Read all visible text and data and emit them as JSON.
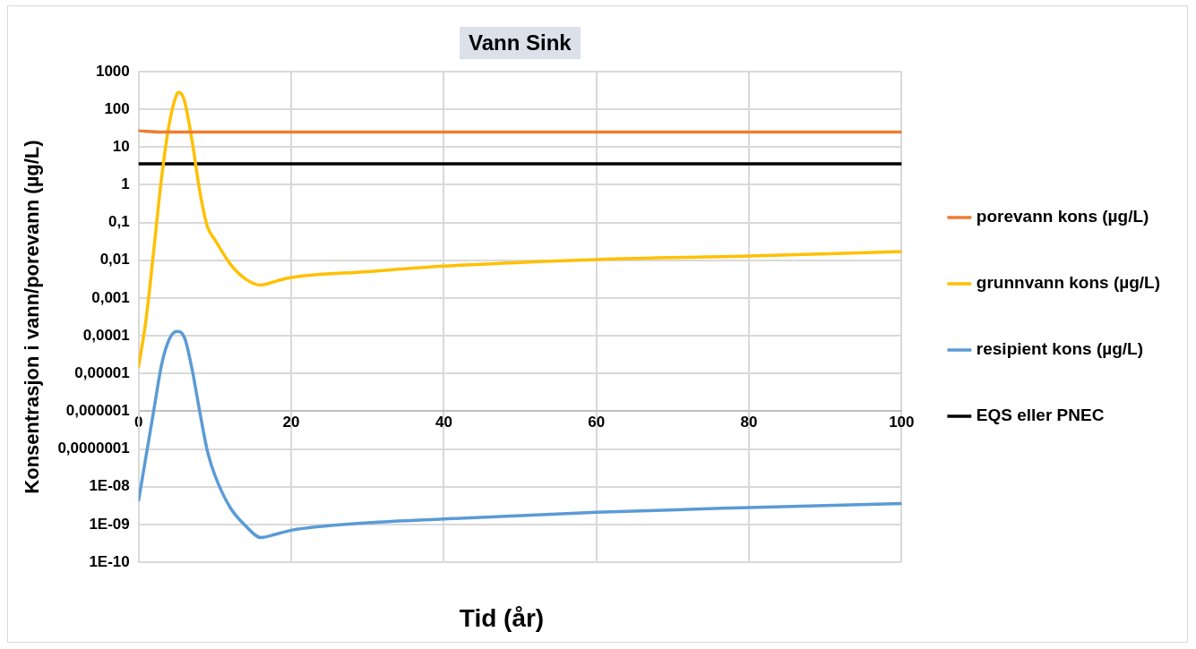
{
  "chart_data": {
    "type": "line",
    "title": "Vann Sink",
    "xlabel": "Tid (år)",
    "ylabel": "Konsentrasjon i vann/porevann (µg/L)",
    "series": [
      {
        "name": "porevann kons (µg/L)",
        "color": "#ed7d31",
        "x": [
          0,
          3,
          100
        ],
        "values": [
          27,
          25,
          25
        ]
      },
      {
        "name": "grunnvann kons (µg/L)",
        "color": "#ffc000",
        "x": [
          0,
          1,
          2,
          3,
          4,
          5,
          5.3,
          6,
          7,
          8,
          9,
          10,
          12,
          14,
          16,
          18,
          20,
          30,
          40,
          60,
          80,
          100
        ],
        "values": [
          1.5e-05,
          0.0003,
          0.02,
          1.5,
          40,
          250,
          280,
          170,
          15,
          0.7,
          0.08,
          0.035,
          0.008,
          0.0032,
          0.0022,
          0.0028,
          0.0035,
          0.005,
          0.007,
          0.0105,
          0.013,
          0.017
        ]
      },
      {
        "name": "resipient kons (µg/L)",
        "color": "#5b9bd5",
        "x": [
          0,
          1,
          2,
          3,
          4,
          5,
          6,
          7,
          8,
          9,
          10,
          12,
          14,
          16,
          18,
          20,
          30,
          40,
          60,
          80,
          100
        ],
        "values": [
          4.4e-09,
          7e-08,
          1.1e-06,
          1.7e-05,
          8e-05,
          0.00013,
          9e-05,
          1.3e-05,
          1e-06,
          9e-08,
          2e-08,
          2.8e-09,
          9.3e-10,
          4.5e-10,
          5.5e-10,
          7e-10,
          1.1e-09,
          1.4e-09,
          2.1e-09,
          2.8e-09,
          3.6e-09
        ]
      },
      {
        "name": "EQS eller PNEC",
        "color": "#000000",
        "x": [
          0,
          100
        ],
        "values": [
          3.6,
          3.6
        ]
      }
    ],
    "log": "y",
    "xlim": [
      0,
      100
    ],
    "xticks": [
      0,
      20,
      40,
      60,
      80,
      100
    ],
    "ylim": [
      1e-10,
      1000
    ],
    "yticks": [
      1000,
      100,
      10,
      1,
      {
        "value": 0.1,
        "label": "0,1"
      },
      {
        "value": 0.01,
        "label": "0,01"
      },
      {
        "value": 0.001,
        "label": "0,001"
      },
      {
        "value": 0.0001,
        "label": "0,0001"
      },
      {
        "value": 1e-05,
        "label": "0,00001"
      },
      {
        "value": 1e-06,
        "label": "0,000001"
      },
      {
        "value": 1e-07,
        "label": "0,0000001"
      },
      {
        "value": 1e-08,
        "label": "1E-08"
      },
      {
        "value": 1e-09,
        "label": "1E-09"
      },
      {
        "value": 1e-10,
        "label": "1E-10"
      }
    ],
    "grid": true,
    "legend": "right",
    "marker": "none",
    "line_style": "solid"
  }
}
